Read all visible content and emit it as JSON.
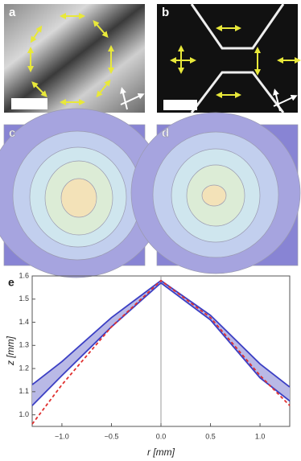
{
  "panels": {
    "labels": [
      "a",
      "b",
      "c",
      "d"
    ]
  },
  "chart_data": {
    "type": "line",
    "label": "e",
    "xlabel": "r [mm]",
    "ylabel": "z [mm]",
    "x": [
      -1.3,
      -1.0,
      -0.5,
      0,
      0.5,
      1.0,
      1.3
    ],
    "series": [
      {
        "color": "#3b3fc4",
        "dash": false,
        "values": [
          1.13,
          1.23,
          1.42,
          1.58,
          1.43,
          1.22,
          1.12
        ]
      },
      {
        "color": "#3b3fc4",
        "dash": false,
        "values": [
          1.04,
          1.17,
          1.38,
          1.57,
          1.41,
          1.16,
          1.06
        ]
      },
      {
        "color": "#e0302f",
        "dash": true,
        "values": [
          0.96,
          1.13,
          1.38,
          1.58,
          1.42,
          1.17,
          1.04
        ]
      }
    ],
    "band_color": "#b9b9e6",
    "xlim": [
      -1.3,
      1.3
    ],
    "xticks": [
      {
        "value": -1,
        "label": "−1.0"
      },
      {
        "value": -0.5,
        "label": "−0.5"
      },
      {
        "value": 0,
        "label": "0.0"
      },
      {
        "value": 0.5,
        "label": "0.5"
      },
      {
        "value": 1,
        "label": "1.0"
      }
    ],
    "ylim": [
      0.95,
      1.6
    ],
    "yticks": [
      {
        "value": 1,
        "label": "1.0"
      },
      1.1,
      1.2,
      1.3,
      1.4,
      1.5,
      1.6
    ]
  }
}
